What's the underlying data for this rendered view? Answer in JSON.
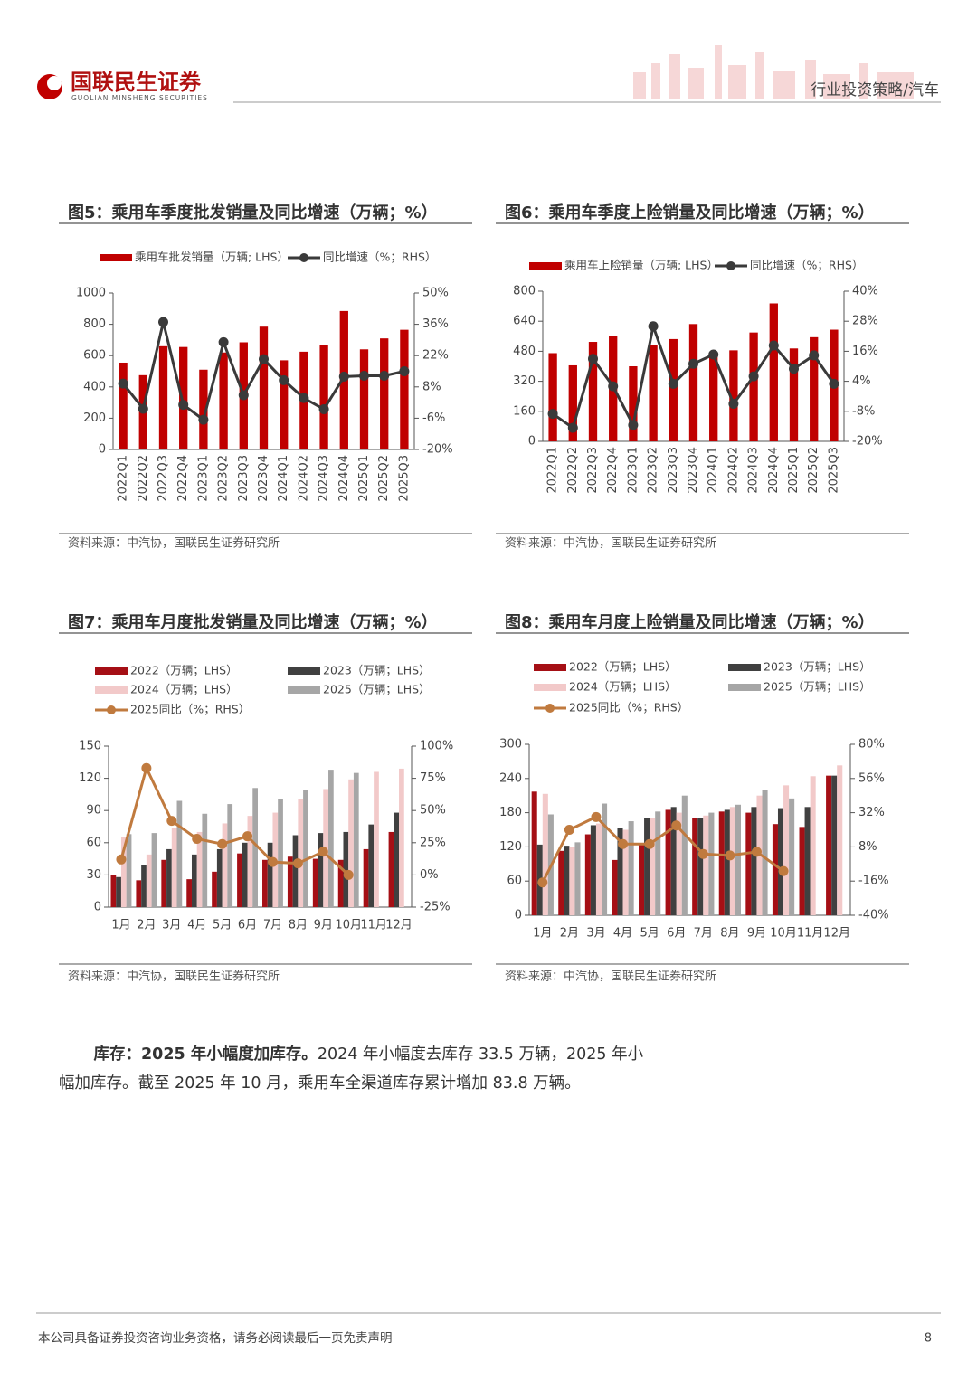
{
  "header": {
    "company": "国联民生证券",
    "company_en": "GUOLIAN MINSHENG SECURITIES",
    "section": "行业投资策略/汽车"
  },
  "chart_data": [
    {
      "type": "combo",
      "title": "图5：乘用车季度批发销量及同比增速（万辆；%）",
      "source": "资料来源：中汽协，国联民生证券研究所",
      "categories": [
        "2022Q1",
        "2022Q2",
        "2022Q3",
        "2022Q4",
        "2023Q1",
        "2023Q2",
        "2023Q3",
        "2023Q4",
        "2024Q1",
        "2024Q2",
        "2024Q3",
        "2024Q4",
        "2025Q1",
        "2025Q2",
        "2025Q3"
      ],
      "series": [
        {
          "name": "乘用车批发销量（万辆; LHS）",
          "color": "#c00000",
          "values": [
            555,
            475,
            660,
            655,
            510,
            620,
            685,
            785,
            570,
            625,
            665,
            885,
            640,
            710,
            765
          ]
        },
        {
          "name": "同比增速（%；RHS）",
          "color": "#3a3a3a",
          "type": "line",
          "axis": "y2",
          "values": [
            9.5,
            -1.8,
            37,
            0,
            -6.7,
            28,
            4.3,
            20.4,
            11,
            3,
            -2,
            12.6,
            13,
            13,
            15
          ]
        }
      ],
      "ylim": [
        0,
        1000
      ],
      "yticks": [
        0,
        200,
        400,
        600,
        800,
        1000
      ],
      "y2lim": [
        -20,
        50
      ],
      "y2ticks": [
        {
          "value": -20,
          "label": "-20%"
        },
        {
          "value": -6,
          "label": "-6%"
        },
        {
          "value": 8,
          "label": "8%"
        },
        {
          "value": 22,
          "label": "22%"
        },
        {
          "value": 36,
          "label": "36%"
        },
        {
          "value": 50,
          "label": "50%"
        }
      ]
    },
    {
      "type": "combo",
      "title": "图6：乘用车季度上险销量及同比增速（万辆；%）",
      "source": "资料来源：中汽协，国联民生证券研究所",
      "categories": [
        "2022Q1",
        "2022Q2",
        "2022Q3",
        "2022Q4",
        "2023Q1",
        "2023Q2",
        "2023Q3",
        "2023Q4",
        "2024Q1",
        "2024Q2",
        "2024Q3",
        "2024Q4",
        "2025Q1",
        "2025Q2",
        "2025Q3"
      ],
      "series": [
        {
          "name": "乘用车上险销量（万辆; LHS）",
          "color": "#c00000",
          "values": [
            470,
            405,
            530,
            560,
            400,
            515,
            545,
            625,
            455,
            485,
            580,
            735,
            495,
            555,
            595
          ]
        },
        {
          "name": "同比增速（%；RHS）",
          "color": "#3a3a3a",
          "type": "line",
          "axis": "y2",
          "values": [
            -9,
            -14.6,
            13,
            2,
            -13.5,
            26,
            3,
            11,
            14.7,
            -5,
            6,
            18.3,
            9,
            14.4,
            3
          ]
        }
      ],
      "ylim": [
        0,
        800
      ],
      "yticks": [
        0,
        160,
        320,
        480,
        640,
        800
      ],
      "y2lim": [
        -20,
        40
      ],
      "y2ticks": [
        {
          "value": -20,
          "label": "-20%"
        },
        {
          "value": -8,
          "label": "-8%"
        },
        {
          "value": 4,
          "label": "4%"
        },
        {
          "value": 16,
          "label": "16%"
        },
        {
          "value": 28,
          "label": "28%"
        },
        {
          "value": 40,
          "label": "40%"
        }
      ]
    },
    {
      "type": "combo",
      "title": "图7：乘用车月度批发销量及同比增速（万辆；%）",
      "source": "资料来源：中汽协，国联民生证券研究所",
      "categories": [
        "1月",
        "2月",
        "3月",
        "4月",
        "5月",
        "6月",
        "7月",
        "8月",
        "9月",
        "10月",
        "11月",
        "12月"
      ],
      "series": [
        {
          "name": "2022（万辆；LHS）",
          "color": "#a50f15",
          "values": [
            30,
            25,
            44,
            26,
            33,
            50,
            44,
            47,
            45,
            44,
            54,
            70
          ]
        },
        {
          "name": "2023（万辆；LHS）",
          "color": "#404040",
          "values": [
            28,
            39,
            54,
            49,
            54,
            60,
            60,
            67,
            69,
            70,
            77,
            88
          ]
        },
        {
          "name": "2024（万辆；LHS）",
          "color": "#f2c9c9",
          "values": [
            65,
            49,
            74,
            70,
            78,
            85,
            88,
            101,
            110,
            119,
            126,
            129
          ]
        },
        {
          "name": "2025（万辆；LHS）",
          "color": "#a6a6a6",
          "values": [
            68,
            69,
            99,
            87,
            96,
            111,
            101,
            109,
            128,
            125,
            null,
            null
          ]
        },
        {
          "name": "2025同比（%；RHS）",
          "color": "#c07a3e",
          "type": "line",
          "axis": "y2",
          "values": [
            12,
            83,
            42,
            28,
            24,
            30,
            10,
            9,
            18,
            0,
            null,
            null
          ]
        }
      ],
      "ylim": [
        0,
        150
      ],
      "yticks": [
        0,
        30,
        60,
        90,
        120,
        150
      ],
      "y2lim": [
        -25,
        100
      ],
      "y2ticks": [
        {
          "value": -25,
          "label": "-25%"
        },
        {
          "value": 0,
          "label": "0%"
        },
        {
          "value": 25,
          "label": "25%"
        },
        {
          "value": 50,
          "label": "50%"
        },
        {
          "value": 75,
          "label": "75%"
        },
        {
          "value": 100,
          "label": "100%"
        }
      ]
    },
    {
      "type": "combo",
      "title": "图8：乘用车月度上险销量及同比增速（万辆；%）",
      "source": "资料来源：中汽协，国联民生证券研究所",
      "categories": [
        "1月",
        "2月",
        "3月",
        "4月",
        "5月",
        "6月",
        "7月",
        "8月",
        "9月",
        "10月",
        "11月",
        "12月"
      ],
      "series": [
        {
          "name": "2022（万辆；LHS）",
          "color": "#a50f15",
          "values": [
            217,
            113,
            142,
            97,
            125,
            185,
            170,
            182,
            180,
            160,
            155,
            245
          ]
        },
        {
          "name": "2023（万辆；LHS）",
          "color": "#404040",
          "values": [
            124,
            122,
            158,
            153,
            170,
            190,
            170,
            185,
            190,
            188,
            190,
            245
          ]
        },
        {
          "name": "2024（万辆；LHS）",
          "color": "#f2c9c9",
          "values": [
            213,
            120,
            161,
            150,
            170,
            180,
            175,
            190,
            210,
            228,
            244,
            263
          ]
        },
        {
          "name": "2025（万辆；LHS）",
          "color": "#a6a6a6",
          "values": [
            177,
            128,
            196,
            165,
            182,
            210,
            180,
            194,
            220,
            205,
            null,
            null
          ]
        },
        {
          "name": "2025同比（%；RHS）",
          "color": "#c07a3e",
          "type": "line",
          "axis": "y2",
          "values": [
            -17,
            20,
            29,
            10,
            10,
            23,
            3,
            2,
            4.5,
            -9,
            null,
            null
          ]
        }
      ],
      "ylim": [
        0,
        300
      ],
      "yticks": [
        0,
        60,
        120,
        180,
        240,
        300
      ],
      "y2lim": [
        -40,
        80
      ],
      "y2ticks": [
        {
          "value": -40,
          "label": "-40%"
        },
        {
          "value": -16,
          "label": "-16%"
        },
        {
          "value": 8,
          "label": "8%"
        },
        {
          "value": 32,
          "label": "32%"
        },
        {
          "value": 56,
          "label": "56%"
        },
        {
          "value": 80,
          "label": "80%"
        }
      ]
    }
  ],
  "paragraph": {
    "lead": "库存：2025 年小幅度加库存。",
    "text": "2024 年小幅度去库存 33.5 万辆，2025 年小幅加库存。截至 2025 年 10 月，乘用车全渠道库存累计增加 83.8 万辆。"
  },
  "footer": {
    "disclaimer": "本公司具备证券投资咨询业务资格，请务必阅读最后一页免责声明",
    "page": "8"
  }
}
